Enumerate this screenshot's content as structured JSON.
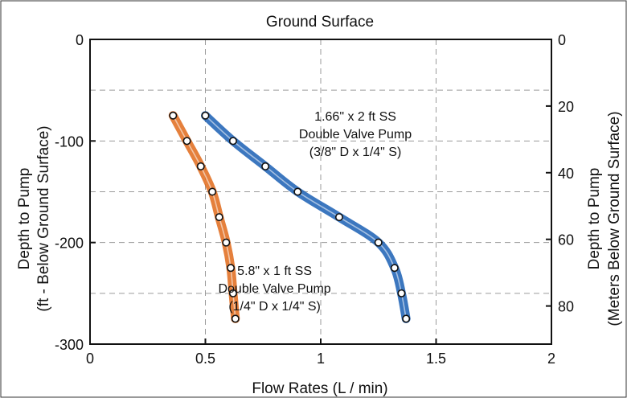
{
  "chart_data": {
    "type": "line",
    "title": "Ground Surface",
    "xlabel": "Flow Rates (L / min)",
    "ylabel_left_line1": "Depth to Pump",
    "ylabel_left_line2": "(ft - Below Ground Surface)",
    "ylabel_right_line1": "Depth to Pump",
    "ylabel_right_line2": "(Meters Below Ground Surface)",
    "xlim": [
      0,
      2
    ],
    "ylim_left": [
      -300,
      0
    ],
    "ylim_right": [
      0,
      91.44
    ],
    "grid": true,
    "x_ticks": [
      0,
      0.5,
      1,
      1.5,
      2
    ],
    "x_tick_labels": [
      "0",
      "0.5",
      "1",
      "1.5",
      "2"
    ],
    "y_left_ticks": [
      0,
      -100,
      -200,
      -300
    ],
    "y_left_tick_labels": [
      "0",
      "-100",
      "-200",
      "-300"
    ],
    "y_right_ticks": [
      0,
      20,
      40,
      60,
      80
    ],
    "y_right_tick_labels": [
      "0",
      "20",
      "40",
      "60",
      "80"
    ],
    "colors": {
      "series_1": "#1a5fb4",
      "series_2": "#e06a1a",
      "grid": "#9a9a9a",
      "frame": "#111111"
    },
    "series": [
      {
        "color_key": "series_1",
        "points": [
          {
            "x": 0.5,
            "y": -75
          },
          {
            "x": 0.62,
            "y": -100
          },
          {
            "x": 0.76,
            "y": -125
          },
          {
            "x": 0.9,
            "y": -150
          },
          {
            "x": 1.08,
            "y": -175
          },
          {
            "x": 1.25,
            "y": -200
          },
          {
            "x": 1.32,
            "y": -225
          },
          {
            "x": 1.35,
            "y": -250
          },
          {
            "x": 1.37,
            "y": -275
          }
        ]
      },
      {
        "color_key": "series_2",
        "points": [
          {
            "x": 0.36,
            "y": -75
          },
          {
            "x": 0.42,
            "y": -100
          },
          {
            "x": 0.48,
            "y": -125
          },
          {
            "x": 0.53,
            "y": -150
          },
          {
            "x": 0.56,
            "y": -175
          },
          {
            "x": 0.59,
            "y": -200
          },
          {
            "x": 0.61,
            "y": -225
          },
          {
            "x": 0.62,
            "y": -250
          },
          {
            "x": 0.63,
            "y": -275
          }
        ]
      }
    ],
    "annotations": [
      {
        "series_index": 0,
        "lines": [
          "1.66\" x 2 ft SS",
          "Double Valve Pump",
          "(3/8\" D x 1/4\" S)"
        ],
        "anchor_x": 1.15,
        "anchor_y": -80
      },
      {
        "series_index": 1,
        "lines": [
          "5.8\" x 1 ft SS",
          "Double Valve Pump",
          "(1/4\" D x 1/4\" S)"
        ],
        "anchor_x": 0.8,
        "anchor_y": -232
      }
    ]
  }
}
